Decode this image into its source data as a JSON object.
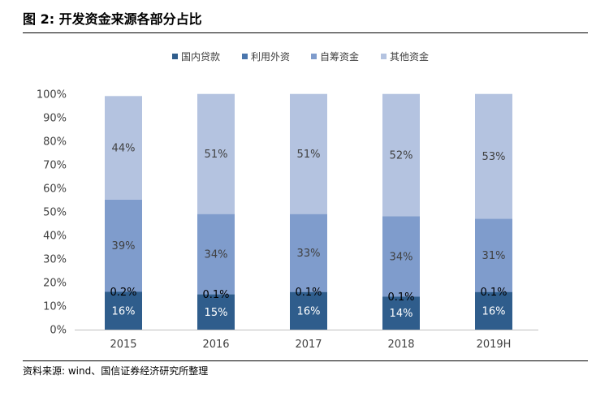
{
  "figure": {
    "title": "图 2: 开发资金来源各部分占比",
    "source": "资料来源: wind、国信证券经济研究所整理"
  },
  "colors": {
    "series": [
      "#2f5d8c",
      "#4a76ad",
      "#7f9ccc",
      "#b4c3e0"
    ],
    "axis": "#bfbfbf",
    "text": "#404040"
  },
  "chart_data": {
    "type": "bar",
    "stacked": true,
    "categories": [
      "2015",
      "2016",
      "2017",
      "2018",
      "2019H"
    ],
    "series": [
      {
        "name": "国内贷款",
        "values": [
          16,
          15,
          16,
          14,
          16
        ],
        "labels": [
          "16%",
          "15%",
          "16%",
          "14%",
          "16%"
        ]
      },
      {
        "name": "利用外资",
        "values": [
          0.2,
          0.1,
          0.1,
          0.1,
          0.1
        ],
        "labels": [
          "0.2%",
          "0.1%",
          "0.1%",
          "0.1%",
          "0.1%"
        ]
      },
      {
        "name": "自筹资金",
        "values": [
          39,
          34,
          33,
          34,
          31
        ],
        "labels": [
          "39%",
          "34%",
          "33%",
          "34%",
          "31%"
        ]
      },
      {
        "name": "其他资金",
        "values": [
          44,
          51,
          51,
          52,
          53
        ],
        "labels": [
          "44%",
          "51%",
          "51%",
          "52%",
          "53%"
        ]
      }
    ],
    "yticks": [
      "0%",
      "10%",
      "20%",
      "30%",
      "40%",
      "50%",
      "60%",
      "70%",
      "80%",
      "90%",
      "100%"
    ],
    "ylim": [
      0,
      100
    ],
    "legend_position": "top",
    "grid": false
  }
}
